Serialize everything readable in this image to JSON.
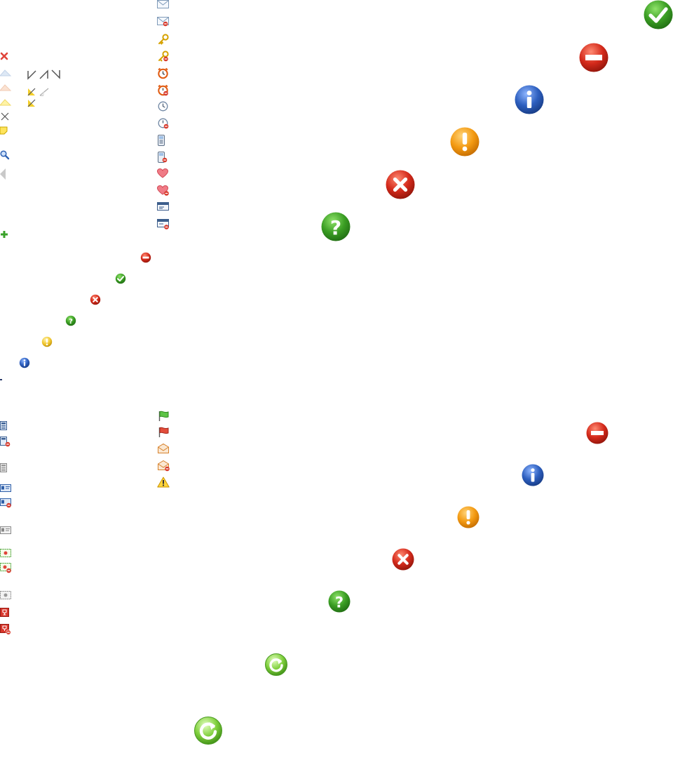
{
  "sheet": {
    "column_small_left": [
      "close-red-icon",
      "triangle-up-blue-icon",
      "triangle-up-peach-icon",
      "triangle-up-yellow-icon",
      "close-gray-icon",
      "sticky-note-icon",
      "magnifier-icon",
      "triangle-left-gray-icon",
      "plus-green-icon"
    ],
    "resize_grips": [
      "grip-bottom-left-icon",
      "grip-bottom-right-icon",
      "grip-top-right-icon",
      "grip-yellow-bottom-left-icon",
      "grip-gray-bottom-right-icon",
      "grip-yellow-bottom-left-icon"
    ],
    "column_small_right_top": [
      "envelope-icon",
      "envelope-remove-icon",
      "key-icon",
      "key-remove-icon",
      "alarm-clock-icon",
      "alarm-clock-remove-icon",
      "clock-icon",
      "clock-remove-icon",
      "phone-icon",
      "phone-remove-icon",
      "heart-icon",
      "heart-remove-icon",
      "card-icon",
      "card-remove-icon"
    ],
    "diagonal_small_status": [
      "minus-red-icon",
      "check-green-icon",
      "close-red-icon",
      "question-green-icon",
      "exclamation-orange-icon",
      "info-blue-icon"
    ],
    "diagonal_large_status_top": [
      "check-green-icon",
      "minus-red-icon",
      "info-blue-icon",
      "exclamation-orange-icon",
      "close-red-icon",
      "question-green-icon"
    ],
    "column_small_left_bottom": [
      "calculator-icon",
      "calculator-remove-icon",
      "calculator-gray-icon",
      "contact-card-icon",
      "contact-card-remove-icon",
      "contact-card-gray-icon",
      "certificate-icon",
      "certificate-remove-icon",
      "certificate-gray-icon",
      "trophy-icon",
      "trophy-remove-icon"
    ],
    "column_small_right_bottom": [
      "flag-green-icon",
      "flag-red-icon",
      "envelope-open-icon",
      "envelope-open-remove-icon",
      "warning-icon"
    ],
    "diagonal_large_status_bottom": [
      "minus-red-icon",
      "info-blue-icon",
      "exclamation-orange-icon",
      "close-red-icon",
      "question-green-icon"
    ],
    "refresh_icons": [
      "refresh-green-icon",
      "refresh-green-icon"
    ],
    "colors": {
      "green": "#3a9d23",
      "red": "#d42a1b",
      "blue": "#2d5fbf",
      "orange": "#f39a12",
      "yellow": "#f0d44a"
    }
  }
}
